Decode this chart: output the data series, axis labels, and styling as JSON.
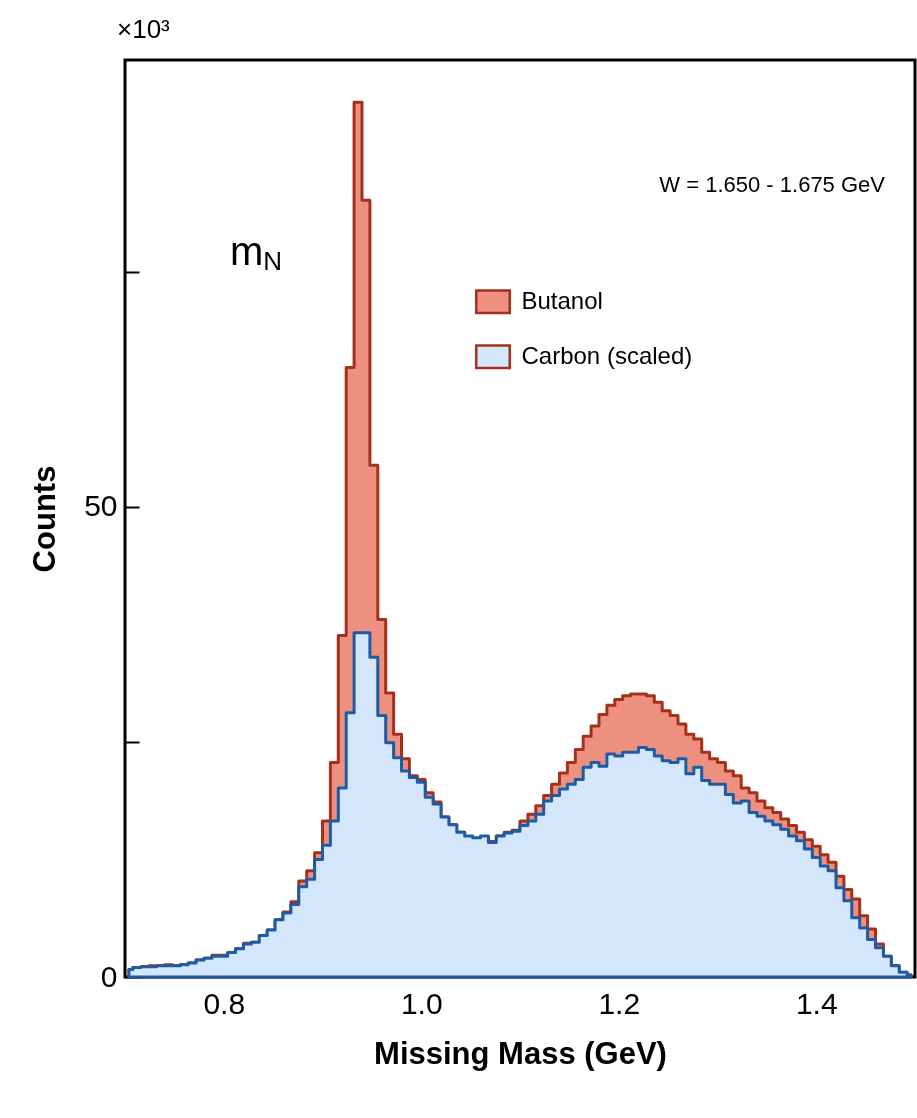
{
  "chart_data": {
    "type": "area",
    "xlabel": "Missing Mass (GeV)",
    "ylabel": "Counts",
    "annotations": [
      "×10³",
      "W = 1.650 - 1.675 GeV",
      "m$_{N}$"
    ],
    "x": [
      0.704,
      0.712,
      0.72,
      0.728,
      0.736,
      0.744,
      0.752,
      0.76,
      0.768,
      0.776,
      0.784,
      0.792,
      0.8,
      0.808,
      0.816,
      0.824,
      0.832,
      0.84,
      0.848,
      0.856,
      0.864,
      0.872,
      0.88,
      0.888,
      0.896,
      0.904,
      0.912,
      0.92,
      0.928,
      0.936,
      0.944,
      0.952,
      0.96,
      0.968,
      0.976,
      0.984,
      0.992,
      1.0,
      1.008,
      1.016,
      1.024,
      1.032,
      1.04,
      1.048,
      1.056,
      1.064,
      1.072,
      1.08,
      1.088,
      1.096,
      1.104,
      1.112,
      1.12,
      1.128,
      1.136,
      1.144,
      1.152,
      1.16,
      1.168,
      1.176,
      1.184,
      1.192,
      1.2,
      1.208,
      1.216,
      1.224,
      1.232,
      1.24,
      1.248,
      1.256,
      1.264,
      1.272,
      1.28,
      1.288,
      1.296,
      1.304,
      1.312,
      1.32,
      1.328,
      1.336,
      1.344,
      1.352,
      1.36,
      1.368,
      1.376,
      1.384,
      1.392,
      1.4,
      1.408,
      1.416,
      1.424,
      1.432,
      1.44,
      1.448,
      1.456,
      1.464,
      1.472,
      1.48,
      1.488,
      1.496
    ],
    "series": [
      {
        "name": "Butanol",
        "color": "#ee9080",
        "values": [
          0.8,
          1.0,
          1.1,
          1.2,
          1.2,
          1.3,
          1.2,
          1.3,
          1.5,
          1.8,
          2.0,
          2.3,
          2.3,
          2.6,
          3.0,
          3.6,
          3.7,
          4.4,
          5.0,
          6.1,
          6.9,
          8.0,
          10.2,
          11.3,
          13.2,
          16.6,
          22.8,
          36.3,
          64.8,
          93.0,
          82.6,
          54.4,
          38.0,
          30.2,
          25.8,
          23.2,
          21.4,
          21.0,
          19.6,
          18.6,
          17.0,
          16.2,
          15.4,
          14.8,
          14.6,
          14.9,
          14.4,
          15.0,
          15.4,
          15.6,
          16.6,
          17.3,
          18.2,
          19.3,
          20.5,
          21.7,
          22.8,
          24.2,
          25.6,
          26.7,
          27.9,
          28.9,
          29.5,
          29.9,
          30.1,
          30.1,
          29.9,
          29.2,
          28.3,
          27.8,
          26.9,
          25.8,
          25.3,
          23.9,
          23.2,
          22.8,
          21.9,
          21.4,
          20.1,
          19.6,
          18.7,
          18.0,
          17.5,
          16.8,
          16.1,
          15.4,
          14.6,
          13.9,
          13.0,
          12.2,
          10.7,
          9.3,
          8.3,
          6.5,
          5.1,
          3.5,
          2.2,
          1.2,
          0.5,
          0.2
        ]
      },
      {
        "name": "Carbon (scaled)",
        "color": "#d4e6fb",
        "values": [
          0.8,
          1.0,
          1.1,
          1.1,
          1.2,
          1.2,
          1.2,
          1.3,
          1.5,
          1.8,
          2.0,
          2.2,
          2.2,
          2.6,
          3.0,
          3.5,
          3.7,
          4.4,
          5.0,
          6.1,
          6.8,
          7.7,
          9.6,
          10.4,
          12.5,
          14.0,
          16.6,
          20.1,
          28.1,
          36.6,
          36.6,
          34.0,
          27.8,
          24.9,
          23.3,
          21.9,
          21.2,
          20.7,
          19.1,
          18.4,
          17.0,
          16.2,
          15.4,
          15.0,
          14.8,
          15.0,
          14.3,
          15.0,
          15.3,
          15.5,
          16.1,
          16.6,
          17.3,
          18.7,
          19.3,
          20.0,
          20.5,
          21.0,
          22.3,
          22.8,
          22.4,
          23.7,
          23.5,
          23.9,
          23.9,
          24.4,
          24.2,
          23.5,
          23.0,
          22.8,
          23.2,
          21.6,
          22.3,
          20.9,
          20.5,
          20.5,
          19.4,
          18.5,
          18.7,
          17.5,
          17.1,
          16.6,
          16.2,
          15.7,
          15.0,
          14.5,
          13.6,
          12.7,
          11.8,
          11.3,
          9.5,
          8.1,
          6.3,
          5.2,
          4.0,
          3.1,
          2.2,
          1.2,
          0.5,
          0.2
        ]
      }
    ],
    "xlim": [
      0.7,
      1.5
    ],
    "xticks": [
      {
        "value": 0.75,
        "label": null
      },
      0.8,
      {
        "value": 0.85,
        "label": null
      },
      {
        "value": 0.9,
        "label": null
      },
      {
        "value": 0.95,
        "label": null
      },
      {
        "value": 1,
        "label": "1.0"
      },
      {
        "value": 1.05,
        "label": null
      },
      {
        "value": 1.1,
        "label": null
      },
      {
        "value": 1.15,
        "label": null
      },
      1.2,
      {
        "value": 1.25,
        "label": null
      },
      {
        "value": 1.3,
        "label": null
      },
      {
        "value": 1.35,
        "label": null
      },
      1.4,
      {
        "value": 1.45,
        "label": null
      }
    ],
    "ylim": [
      0,
      97.5
    ],
    "yticks": [
      0,
      {
        "value": 25,
        "label": null
      },
      50,
      {
        "value": 75,
        "label": null
      }
    ],
    "legend": "top right"
  }
}
